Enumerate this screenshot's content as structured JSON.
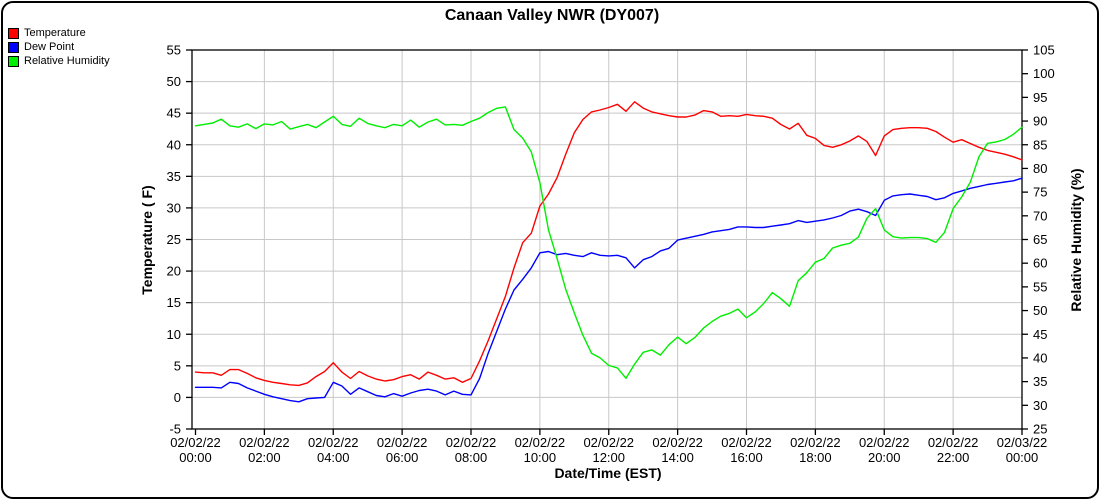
{
  "title": "Canaan Valley NWR (DY007)",
  "legend": [
    {
      "name": "temperature",
      "label": "Temperature",
      "color": "#ff0000"
    },
    {
      "name": "dew-point",
      "label": "Dew Point",
      "color": "#0000ff"
    },
    {
      "name": "relative-humidity",
      "label": "Relative Humidity",
      "color": "#00ee00"
    }
  ],
  "chart_data": {
    "type": "line",
    "title": "Canaan Valley NWR (DY007)",
    "xlabel": "Date/Time (EST)",
    "ylabel_left": "Temperature ( F)",
    "ylabel_right": "Relative Humidity (%)",
    "ylim_left": [
      -5,
      55
    ],
    "ytick_step_left": 5,
    "ylim_right": [
      25,
      105
    ],
    "ytick_step_right": 5,
    "grid": true,
    "legend_position": "top-left",
    "grid_color": "#c8c8c8",
    "x_hours_range": [
      0,
      24
    ],
    "x_sample_step_hours": 0.25,
    "x_tick_interval_hours": 2,
    "x_tick_labels": [
      {
        "date": "02/02/22",
        "time": "00:00"
      },
      {
        "date": "02/02/22",
        "time": "02:00"
      },
      {
        "date": "02/02/22",
        "time": "04:00"
      },
      {
        "date": "02/02/22",
        "time": "06:00"
      },
      {
        "date": "02/02/22",
        "time": "08:00"
      },
      {
        "date": "02/02/22",
        "time": "10:00"
      },
      {
        "date": "02/02/22",
        "time": "12:00"
      },
      {
        "date": "02/02/22",
        "time": "14:00"
      },
      {
        "date": "02/02/22",
        "time": "16:00"
      },
      {
        "date": "02/02/22",
        "time": "18:00"
      },
      {
        "date": "02/02/22",
        "time": "20:00"
      },
      {
        "date": "02/02/22",
        "time": "22:00"
      },
      {
        "date": "02/03/22",
        "time": "00:00"
      }
    ],
    "series": [
      {
        "name": "Temperature",
        "axis": "left",
        "color": "#ff0000",
        "values": [
          4,
          3.9,
          3.9,
          3.5,
          4.4,
          4.4,
          3.8,
          3.1,
          2.7,
          2.4,
          2.2,
          2,
          1.9,
          2.3,
          3.3,
          4.1,
          5.5,
          4,
          3,
          4.1,
          3.4,
          2.9,
          2.6,
          2.8,
          3.3,
          3.6,
          2.9,
          4,
          3.5,
          2.9,
          3.1,
          2.4,
          3,
          5.8,
          9,
          12.5,
          16,
          20.5,
          24.5,
          26,
          30.3,
          32.2,
          34.8,
          38.5,
          41.9,
          44,
          45.2,
          45.5,
          45.9,
          46.4,
          45.3,
          46.8,
          45.8,
          45.2,
          44.9,
          44.6,
          44.4,
          44.4,
          44.7,
          45.4,
          45.2,
          44.5,
          44.6,
          44.5,
          44.8,
          44.6,
          44.5,
          44.2,
          43.2,
          42.5,
          43.4,
          41.5,
          41,
          39.9,
          39.6,
          40,
          40.6,
          41.4,
          40.5,
          38.3,
          41.4,
          42.4,
          42.6,
          42.7,
          42.7,
          42.6,
          42.1,
          41.2,
          40.4,
          40.8,
          40.2,
          39.6,
          39.1,
          38.8,
          38.5,
          38.1,
          37.6
        ]
      },
      {
        "name": "Dew Point",
        "axis": "left",
        "color": "#0000ff",
        "values": [
          1.6,
          1.6,
          1.6,
          1.5,
          2.4,
          2.2,
          1.5,
          1,
          0.5,
          0.1,
          -0.2,
          -0.5,
          -0.7,
          -0.2,
          -0.1,
          0,
          2.4,
          1.8,
          0.5,
          1.5,
          0.9,
          0.3,
          0.1,
          0.6,
          0.2,
          0.7,
          1.1,
          1.3,
          1,
          0.4,
          1,
          0.5,
          0.4,
          3,
          7,
          10.5,
          14,
          17,
          18.7,
          20.5,
          22.9,
          23.1,
          22.6,
          22.8,
          22.5,
          22.3,
          22.9,
          22.5,
          22.4,
          22.5,
          22.1,
          20.5,
          21.8,
          22.3,
          23.2,
          23.6,
          24.9,
          25.2,
          25.5,
          25.8,
          26.2,
          26.4,
          26.6,
          27,
          27,
          26.9,
          26.9,
          27.1,
          27.3,
          27.5,
          28,
          27.7,
          27.9,
          28.1,
          28.4,
          28.8,
          29.5,
          29.8,
          29.4,
          28.8,
          31.2,
          31.9,
          32.1,
          32.2,
          32,
          31.8,
          31.3,
          31.6,
          32.3,
          32.7,
          33.1,
          33.4,
          33.7,
          33.9,
          34.1,
          34.3,
          34.7
        ]
      },
      {
        "name": "Relative Humidity",
        "axis": "right",
        "color": "#00ee00",
        "values": [
          89,
          89.3,
          89.6,
          90.4,
          89,
          88.7,
          89.4,
          88.4,
          89.4,
          89.2,
          89.9,
          88.3,
          88.8,
          89.3,
          88.6,
          89.8,
          91,
          89.3,
          88.9,
          90.6,
          89.5,
          89,
          88.6,
          89.3,
          89,
          90.2,
          88.7,
          89.8,
          90.4,
          89.2,
          89.3,
          89.1,
          89.9,
          90.6,
          91.8,
          92.7,
          93,
          88.2,
          86.4,
          83.5,
          77,
          67,
          61,
          54.5,
          49.5,
          44.8,
          41,
          40,
          38.4,
          37.9,
          35.7,
          38.7,
          41.2,
          41.7,
          40.6,
          42.8,
          44.4,
          43,
          44.3,
          46.3,
          47.7,
          48.8,
          49.4,
          50.3,
          48.5,
          49.7,
          51.5,
          53.8,
          52.5,
          50.9,
          56.3,
          58,
          60.2,
          61,
          63.2,
          63.8,
          64.2,
          65.5,
          69.5,
          71.5,
          67,
          65.6,
          65.3,
          65.4,
          65.4,
          65.2,
          64.4,
          66.5,
          71.5,
          74,
          77.1,
          82.5,
          85.3,
          85.6,
          86.1,
          87.2,
          88.7
        ]
      }
    ]
  }
}
